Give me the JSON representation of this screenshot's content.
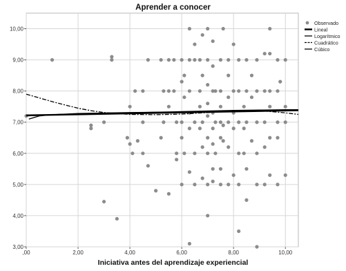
{
  "chart_data": {
    "type": "scatter",
    "title": "Aprender a conocer",
    "xlabel": "Iniciativa antes del aprendizaje experiencial",
    "ylabel": "",
    "xlim": [
      0,
      10.5
    ],
    "ylim": [
      3,
      10.5
    ],
    "x_ticks": [
      ",00",
      "2,00",
      "4,00",
      "6,00",
      "8,00",
      "10,00"
    ],
    "y_ticks": [
      "3,00",
      "4,00",
      "5,00",
      "6,00",
      "7,00",
      "8,00",
      "9,00",
      "10,00"
    ],
    "grid": true,
    "legend_position": "right",
    "legend": [
      "Observado",
      "Lineal",
      "Logarítmico",
      "Cuadrático",
      "Cúbico"
    ],
    "observed": [
      [
        0.0,
        7.2
      ],
      [
        1.0,
        9.0
      ],
      [
        2.5,
        6.9
      ],
      [
        2.5,
        6.8
      ],
      [
        3.0,
        7.0
      ],
      [
        3.0,
        4.45
      ],
      [
        3.3,
        9.0
      ],
      [
        3.3,
        9.1
      ],
      [
        3.5,
        3.9
      ],
      [
        3.9,
        6.5
      ],
      [
        4.0,
        6.3
      ],
      [
        4.0,
        7.5
      ],
      [
        4.1,
        6.0
      ],
      [
        4.2,
        8.0
      ],
      [
        4.3,
        6.4
      ],
      [
        4.5,
        8.0
      ],
      [
        4.5,
        7.0
      ],
      [
        4.5,
        6.0
      ],
      [
        4.7,
        9.0
      ],
      [
        4.7,
        5.6
      ],
      [
        5.0,
        4.8
      ],
      [
        5.2,
        9.0
      ],
      [
        5.2,
        6.5
      ],
      [
        5.3,
        8.0
      ],
      [
        5.3,
        7.0
      ],
      [
        5.5,
        9.0
      ],
      [
        5.5,
        8.0
      ],
      [
        5.5,
        7.5
      ],
      [
        5.5,
        4.7
      ],
      [
        5.7,
        9.0
      ],
      [
        5.7,
        8.0
      ],
      [
        5.8,
        7.0
      ],
      [
        5.8,
        6.0
      ],
      [
        5.8,
        5.8
      ],
      [
        6.0,
        9.0
      ],
      [
        6.0,
        8.3
      ],
      [
        6.0,
        7.0
      ],
      [
        6.0,
        6.5
      ],
      [
        6.0,
        5.0
      ],
      [
        6.1,
        8.5
      ],
      [
        6.1,
        7.8
      ],
      [
        6.1,
        6.0
      ],
      [
        6.3,
        10.0
      ],
      [
        6.3,
        9.0
      ],
      [
        6.3,
        8.0
      ],
      [
        6.3,
        7.3
      ],
      [
        6.3,
        6.8
      ],
      [
        6.3,
        5.4
      ],
      [
        6.3,
        3.1
      ],
      [
        6.5,
        9.5
      ],
      [
        6.5,
        9.0
      ],
      [
        6.5,
        7.0
      ],
      [
        6.5,
        6.0
      ],
      [
        6.5,
        5.0
      ],
      [
        6.7,
        9.0
      ],
      [
        6.7,
        8.0
      ],
      [
        6.7,
        7.5
      ],
      [
        6.7,
        6.8
      ],
      [
        6.8,
        9.8
      ],
      [
        6.8,
        8.5
      ],
      [
        6.8,
        7.0
      ],
      [
        6.8,
        6.2
      ],
      [
        6.8,
        5.2
      ],
      [
        7.0,
        10.0
      ],
      [
        7.0,
        9.0
      ],
      [
        7.0,
        8.2
      ],
      [
        7.0,
        7.6
      ],
      [
        7.0,
        7.2
      ],
      [
        7.0,
        6.5
      ],
      [
        7.0,
        6.0
      ],
      [
        7.0,
        5.0
      ],
      [
        7.0,
        4.0
      ],
      [
        7.2,
        9.6
      ],
      [
        7.2,
        8.8
      ],
      [
        7.2,
        8.0
      ],
      [
        7.2,
        7.3
      ],
      [
        7.2,
        6.8
      ],
      [
        7.2,
        6.3
      ],
      [
        7.2,
        5.5
      ],
      [
        7.2,
        5.1
      ],
      [
        7.3,
        8.0
      ],
      [
        7.3,
        7.0
      ],
      [
        7.3,
        6.0
      ],
      [
        7.5,
        9.0
      ],
      [
        7.5,
        8.0
      ],
      [
        7.5,
        7.5
      ],
      [
        7.5,
        7.0
      ],
      [
        7.5,
        6.5
      ],
      [
        7.5,
        5.5
      ],
      [
        7.5,
        5.0
      ],
      [
        7.6,
        10.0
      ],
      [
        7.6,
        6.9
      ],
      [
        7.6,
        6.4
      ],
      [
        7.8,
        9.0
      ],
      [
        7.8,
        8.5
      ],
      [
        7.8,
        7.8
      ],
      [
        7.8,
        7.0
      ],
      [
        7.8,
        6.2
      ],
      [
        7.8,
        5.0
      ],
      [
        8.0,
        9.5
      ],
      [
        8.0,
        8.0
      ],
      [
        8.0,
        7.3
      ],
      [
        8.0,
        6.8
      ],
      [
        8.0,
        5.3
      ],
      [
        8.2,
        9.0
      ],
      [
        8.2,
        8.0
      ],
      [
        8.2,
        7.0
      ],
      [
        8.2,
        6.0
      ],
      [
        8.2,
        5.0
      ],
      [
        8.2,
        3.5
      ],
      [
        8.4,
        7.5
      ],
      [
        8.4,
        6.8
      ],
      [
        8.4,
        6.0
      ],
      [
        8.5,
        9.0
      ],
      [
        8.5,
        8.0
      ],
      [
        8.5,
        7.0
      ],
      [
        8.5,
        5.5
      ],
      [
        8.5,
        4.5
      ],
      [
        8.7,
        8.5
      ],
      [
        8.7,
        7.8
      ],
      [
        8.7,
        6.4
      ],
      [
        8.9,
        9.0
      ],
      [
        8.9,
        8.0
      ],
      [
        8.9,
        7.0
      ],
      [
        8.9,
        6.0
      ],
      [
        8.9,
        5.0
      ],
      [
        8.9,
        3.0
      ],
      [
        9.2,
        9.2
      ],
      [
        9.2,
        8.0
      ],
      [
        9.2,
        7.0
      ],
      [
        9.2,
        6.2
      ],
      [
        9.2,
        5.0
      ],
      [
        9.4,
        10.0
      ],
      [
        9.4,
        9.2
      ],
      [
        9.4,
        8.0
      ],
      [
        9.4,
        7.5
      ],
      [
        9.4,
        6.5
      ],
      [
        9.4,
        5.3
      ],
      [
        9.7,
        9.0
      ],
      [
        9.7,
        8.0
      ],
      [
        9.7,
        7.0
      ],
      [
        9.7,
        6.5
      ],
      [
        9.7,
        5.0
      ],
      [
        9.8,
        8.3
      ],
      [
        10.0,
        9.0
      ],
      [
        10.0,
        7.5
      ],
      [
        10.0,
        7.0
      ],
      [
        10.0,
        5.3
      ]
    ],
    "fits": {
      "Lineal": [
        [
          0,
          7.22
        ],
        [
          10.5,
          7.38
        ]
      ],
      "Logarítmico": [
        [
          0.1,
          7.1
        ],
        [
          0.5,
          7.2
        ],
        [
          1,
          7.24
        ],
        [
          2,
          7.28
        ],
        [
          4,
          7.31
        ],
        [
          6,
          7.33
        ],
        [
          8,
          7.35
        ],
        [
          10.5,
          7.38
        ]
      ],
      "Cuadrático": [
        [
          0,
          7.9
        ],
        [
          0.5,
          7.78
        ],
        [
          1,
          7.66
        ],
        [
          1.5,
          7.55
        ],
        [
          2,
          7.45
        ],
        [
          2.5,
          7.37
        ],
        [
          3,
          7.31
        ],
        [
          4,
          7.25
        ],
        [
          5,
          7.24
        ],
        [
          6,
          7.26
        ],
        [
          7,
          7.31
        ],
        [
          8,
          7.36
        ],
        [
          9,
          7.37
        ],
        [
          10,
          7.3
        ],
        [
          10.5,
          7.25
        ]
      ],
      "Cúbico": [
        [
          0,
          7.2
        ],
        [
          1,
          7.24
        ],
        [
          2,
          7.27
        ],
        [
          3,
          7.29
        ],
        [
          4,
          7.3
        ],
        [
          5,
          7.32
        ],
        [
          6,
          7.34
        ],
        [
          7,
          7.36
        ],
        [
          8,
          7.38
        ],
        [
          9,
          7.39
        ],
        [
          10,
          7.4
        ],
        [
          10.5,
          7.4
        ]
      ]
    },
    "colors": {
      "points": "#8c8c8c",
      "lines": "#000000",
      "grid": "#d6d6d6"
    }
  }
}
